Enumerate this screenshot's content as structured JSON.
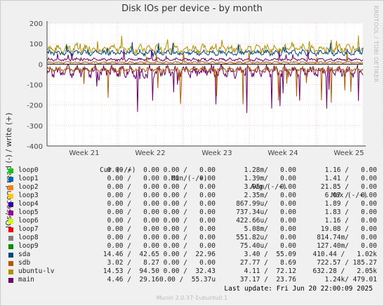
{
  "title": "Disk IOs per device - by month",
  "sidebar_text": "RRDTOOL / TOBI OETIKER",
  "footer": "Munin 2.0.37-1ubuntu0.1",
  "last_update": "Last update: Fri Jun 20 22:00:09 2025",
  "legend_headers": {
    "cur": "Cur (-/+)",
    "min": "Min (-/+)",
    "avg": "Avg (-/+)",
    "max": "Max (-/+)"
  },
  "colors": {
    "loop0": "#00cc00",
    "loop1": "#0066b3",
    "loop2": "#ff8000",
    "loop3": "#ffcc00",
    "loop4": "#330099",
    "loop5": "#990099",
    "loop6": "#ccff00",
    "loop7": "#ff0000",
    "loop8": "#808080",
    "loop9": "#008f00",
    "sda": "#00487d",
    "sdb": "#b35a00",
    "ubuntu-lv": "#b38f00",
    "main": "#6b006b"
  },
  "legend": [
    {
      "name": "loop0",
      "cur": "0.00 /   0.00",
      "min": "0.00 /   0.00",
      "avg": "1.28m/   0.00",
      "max": "1.16 /   0.00"
    },
    {
      "name": "loop1",
      "cur": "0.00 /   0.00",
      "min": "0.00 /   0.00",
      "avg": "1.39m/   0.00",
      "max": "1.41 /   0.00"
    },
    {
      "name": "loop2",
      "cur": "0.00 /   0.00",
      "min": "0.00 /   0.00",
      "avg": "3.95m/   0.00",
      "max": "21.85 /   0.00"
    },
    {
      "name": "loop3",
      "cur": "0.00 /   0.00",
      "min": "0.00 /   0.00",
      "avg": "2.35m/   0.00",
      "max": "6.07 /   0.00"
    },
    {
      "name": "loop4",
      "cur": "0.00 /   0.00",
      "min": "0.00 /   0.00",
      "avg": "867.99u/   0.00",
      "max": "1.89 /   0.00"
    },
    {
      "name": "loop5",
      "cur": "0.00 /   0.00",
      "min": "0.00 /   0.00",
      "avg": "737.34u/   0.00",
      "max": "1.83 /   0.00"
    },
    {
      "name": "loop6",
      "cur": "0.00 /   0.00",
      "min": "0.00 /   0.00",
      "avg": "422.66u/   0.00",
      "max": "1.16 /   0.00"
    },
    {
      "name": "loop7",
      "cur": "0.00 /   0.00",
      "min": "0.00 /   0.00",
      "avg": "5.08m/   0.00",
      "max": "19.08 /   0.00"
    },
    {
      "name": "loop8",
      "cur": "0.00 /   0.00",
      "min": "0.00 /   0.00",
      "avg": "551.82u/   0.00",
      "max": "814.74m/   0.00"
    },
    {
      "name": "loop9",
      "cur": "0.00 /   0.00",
      "min": "0.00 /   0.00",
      "avg": "75.40u/   0.00",
      "max": "127.40m/   0.00"
    },
    {
      "name": "sda",
      "cur": "14.46 /  42.65",
      "min": "0.00 /  22.96",
      "avg": "3.40 /  55.09",
      "max": "410.44 /   1.02k"
    },
    {
      "name": "sdb",
      "cur": "3.02 /   8.27",
      "min": "0.00 /   0.00",
      "avg": "27.77 /   8.69",
      "max": "722.57 / 185.27"
    },
    {
      "name": "ubuntu-lv",
      "cur": "14.53 /  94.50",
      "min": "0.00 /  32.43",
      "avg": "4.11 /  72.12",
      "max": "632.28 /   2.05k"
    },
    {
      "name": "main",
      "cur": "4.46 /  29.16",
      "min": "0.00 /  55.37u",
      "avg": "37.17 /  23.76",
      "max": "1.24k/ 479.01"
    }
  ],
  "chart_data": {
    "type": "line",
    "title": "Disk IOs per device - by month",
    "ylabel": "IOs/second read (-) / write (+)",
    "ylim": [
      -400,
      200
    ],
    "yticks": [
      200,
      100,
      0,
      -100,
      -200,
      -300,
      -400
    ],
    "x_categories": [
      "Week 21",
      "Week 22",
      "Week 23",
      "Week 24",
      "Week 25"
    ],
    "grid": true,
    "series": [
      {
        "name": "ubuntu-lv",
        "direction": "write",
        "baseline": 75,
        "spread": 28
      },
      {
        "name": "sda",
        "direction": "write",
        "baseline": 55,
        "spread": 18
      },
      {
        "name": "main",
        "direction": "write",
        "baseline": 22,
        "spread": 10
      },
      {
        "name": "sdb",
        "direction": "write",
        "baseline": 8,
        "spread": 6
      },
      {
        "name": "main",
        "direction": "read",
        "baseline": -35,
        "spread": 40
      },
      {
        "name": "sdb",
        "direction": "read",
        "baseline": -25,
        "spread": 15
      }
    ]
  }
}
